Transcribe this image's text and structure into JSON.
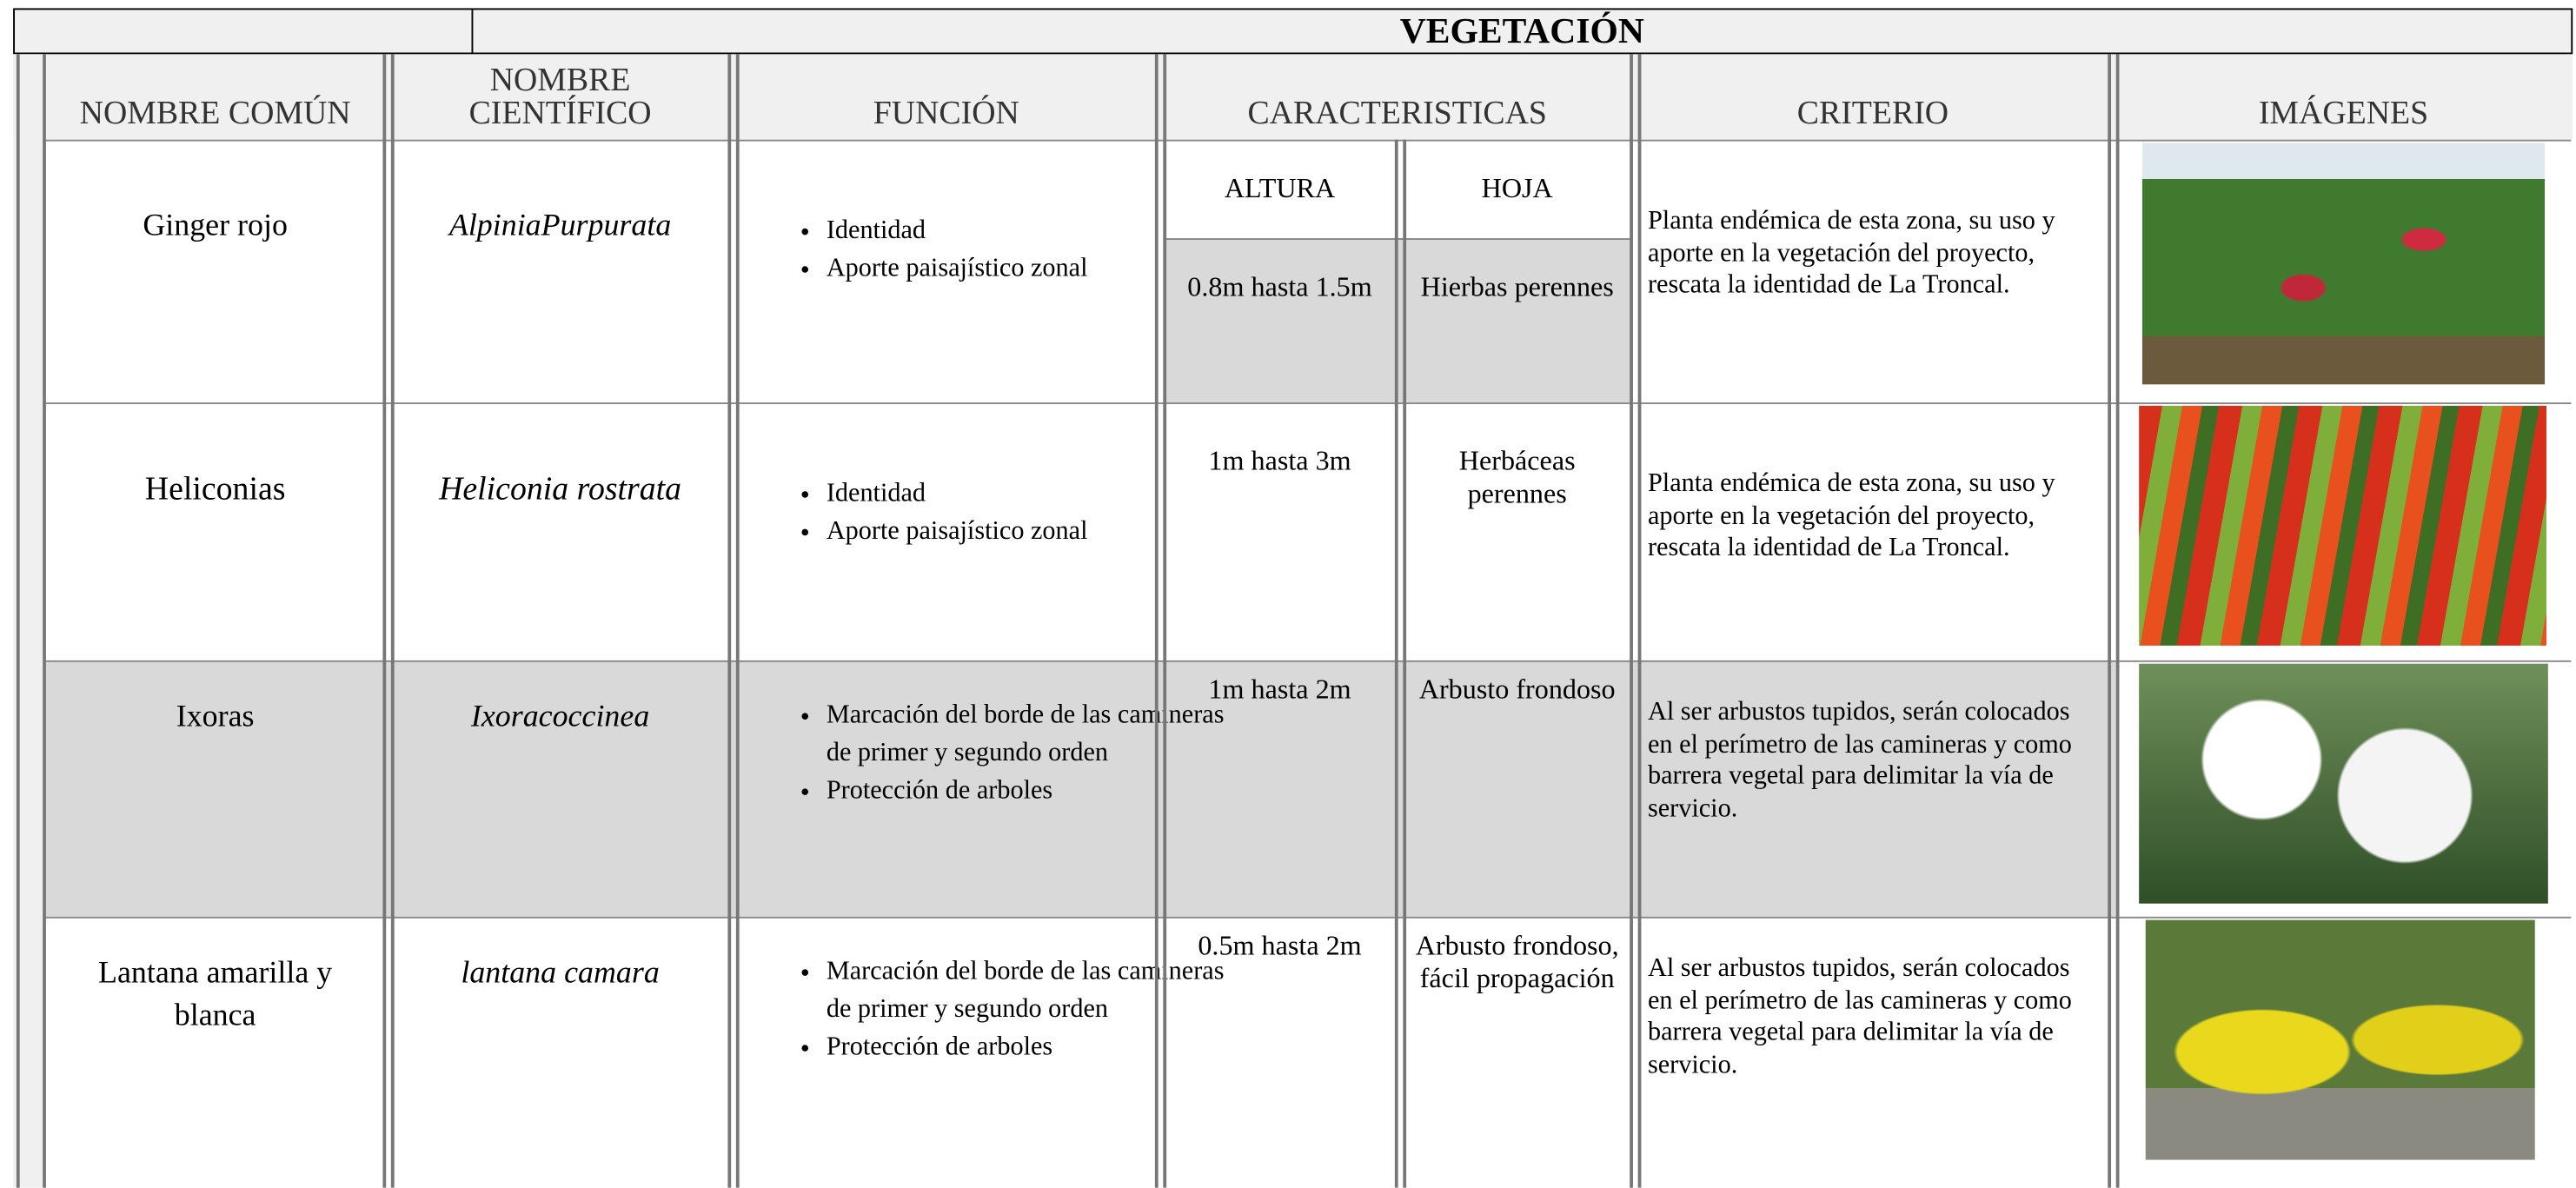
{
  "title": "VEGETACIÓN",
  "headers": [
    "NOMBRE COMÚN",
    "NOMBRE CIENTÍFICO",
    "FUNCIÓN",
    "CARACTERISTICAS",
    "CRITERIO",
    "IMÁGENES"
  ],
  "subheaders": [
    "ALTURA",
    "HOJA"
  ],
  "rows": [
    {
      "common": "Ginger rojo",
      "scientific": "AlpiniaPurpurata",
      "functions": [
        "Identidad",
        "Aporte paisajístico zonal"
      ],
      "height": "0.8m hasta 1.5m",
      "leaf": "Hierbas perennes",
      "criterion": "Planta endémica de esta zona, su uso y aporte en la vegetación del proyecto, rescata la identidad de La Troncal."
    },
    {
      "common": "Heliconias",
      "scientific": "Heliconia rostrata",
      "functions": [
        "Identidad",
        "Aporte paisajístico zonal"
      ],
      "height": "1m hasta 3m",
      "leaf": "Herbáceas perennes",
      "criterion": "Planta endémica de esta zona, su uso y aporte en la vegetación del proyecto, rescata la identidad de La Troncal."
    },
    {
      "common": "Ixoras",
      "scientific": "Ixoracoccinea",
      "functions": [
        "Marcación del borde de las camineras de primer y segundo orden",
        "Protección de arboles"
      ],
      "height": "1m hasta 2m",
      "leaf": "Arbusto frondoso",
      "criterion": "Al ser arbustos tupidos, serán colocados en el perímetro de las camineras y como barrera vegetal para delimitar la vía de servicio."
    },
    {
      "common": "Lantana amarilla y blanca",
      "scientific": "lantana camara",
      "functions": [
        "Marcación del borde de las camineras de primer y segundo orden",
        "Protección de arboles"
      ],
      "height": "0.5m hasta 2m",
      "leaf": "Arbusto frondoso, fácil propagación",
      "criterion": "Al ser arbustos tupidos, serán colocados en el perímetro de las camineras y como barrera vegetal para delimitar la vía de servicio."
    }
  ]
}
